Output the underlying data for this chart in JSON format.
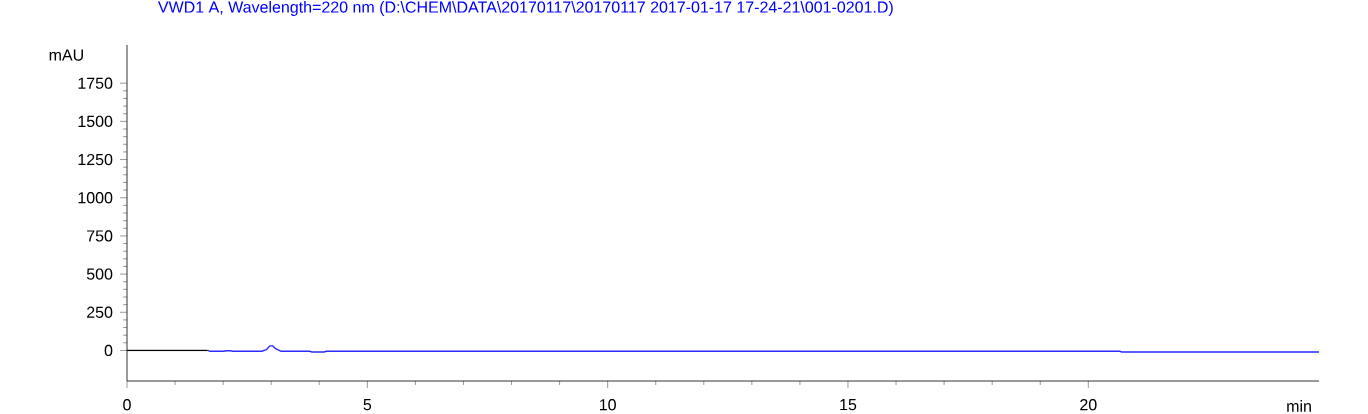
{
  "chart_data": {
    "type": "line",
    "title": "VWD1 A, Wavelength=220 nm (D:\\CHEM\\DATA\\20170117\\20170117 2017-01-17 17-24-21\\001-0201.D)",
    "xlabel": "min",
    "ylabel": "mAU",
    "series": [
      {
        "color": "#000000",
        "x": [
          0,
          0.5,
          1.0,
          1.5,
          1.68
        ],
        "values": [
          0,
          0,
          0,
          0,
          0
        ]
      },
      {
        "color": "#2b2bff",
        "x": [
          1.68,
          1.72,
          2.0,
          2.08,
          2.15,
          2.2,
          2.8,
          2.9,
          2.97,
          3.03,
          3.1,
          3.2,
          3.3,
          3.8,
          3.85,
          4.1,
          4.15,
          6,
          10,
          15,
          20.65,
          20.7,
          24.8
        ],
        "values": [
          0,
          -5,
          -5,
          -2,
          -2,
          -5,
          -5,
          5,
          30,
          30,
          10,
          -5,
          -5,
          -5,
          -10,
          -10,
          -5,
          -5,
          -5,
          -5,
          -5,
          -10,
          -10
        ]
      }
    ],
    "xlim": [
      0,
      24.8
    ],
    "ylim": [
      -200,
      2000
    ],
    "xticks": [
      0,
      5,
      10,
      15,
      20
    ],
    "yticks": [
      0,
      250,
      500,
      750,
      1000,
      1250,
      1500,
      1750
    ]
  }
}
